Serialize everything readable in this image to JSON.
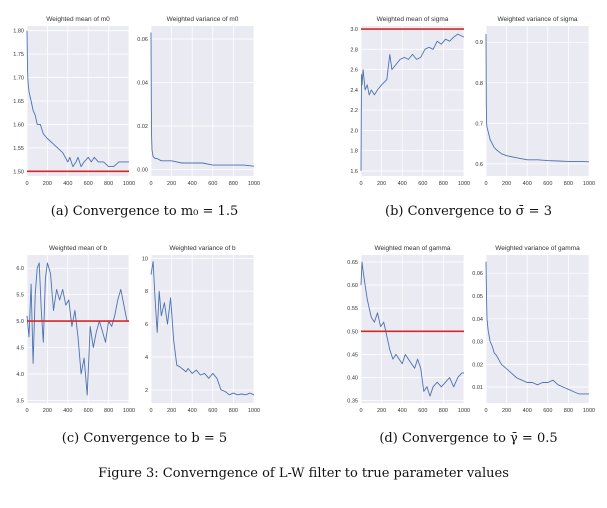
{
  "figure_caption": "Figure 3: Converngence of L-W filter to true parameter values",
  "panels": [
    {
      "caption": "(a) Convergence to m₀ = 1.5"
    },
    {
      "caption": "(b) Convergence to σ̄ = 3"
    },
    {
      "caption": "(c) Convergence to b = 5"
    },
    {
      "caption": "(d) Convergence to γ̄ = 0.5"
    }
  ],
  "colors": {
    "line": "#4c72b0",
    "truth": "#d62728",
    "panel_bg": "#eaeaf2",
    "grid": "#ffffff"
  },
  "chart_data": [
    {
      "type": "line",
      "title": "Weighted mean of m0",
      "xlim": [
        0,
        1000
      ],
      "ylim": [
        1.49,
        1.81
      ],
      "xticks": [
        "0",
        "200",
        "400",
        "600",
        "800",
        "1000"
      ],
      "yticks": [
        1.5,
        1.55,
        1.6,
        1.65,
        1.7,
        1.75,
        1.8
      ],
      "ytick_labels": [
        "1.50",
        "1.55",
        "1.60",
        "1.65",
        "1.70",
        "1.75",
        "1.80"
      ],
      "true_value": 1.5,
      "x": [
        0,
        5,
        10,
        20,
        40,
        60,
        80,
        100,
        130,
        160,
        200,
        250,
        300,
        350,
        400,
        420,
        450,
        480,
        500,
        530,
        560,
        600,
        630,
        660,
        700,
        750,
        800,
        850,
        900,
        950,
        1000
      ],
      "y": [
        1.8,
        1.72,
        1.69,
        1.67,
        1.65,
        1.63,
        1.62,
        1.6,
        1.6,
        1.58,
        1.57,
        1.56,
        1.55,
        1.54,
        1.52,
        1.53,
        1.51,
        1.52,
        1.53,
        1.51,
        1.52,
        1.53,
        1.52,
        1.53,
        1.52,
        1.52,
        1.51,
        1.51,
        1.52,
        1.52,
        1.52
      ],
      "grid": true
    },
    {
      "type": "line",
      "title": "Weighted variance of m0",
      "xlim": [
        0,
        1000
      ],
      "ylim": [
        -0.003,
        0.066
      ],
      "xticks": [
        "0",
        "200",
        "400",
        "600",
        "800",
        "1000"
      ],
      "yticks": [
        0,
        0.02,
        0.04,
        0.06
      ],
      "ytick_labels": [
        "0.00",
        "0.02",
        "0.04",
        "0.06"
      ],
      "x": [
        0,
        3,
        6,
        10,
        20,
        40,
        60,
        100,
        150,
        200,
        300,
        400,
        500,
        600,
        700,
        800,
        900,
        1000
      ],
      "y": [
        0.063,
        0.03,
        0.015,
        0.009,
        0.006,
        0.005,
        0.005,
        0.004,
        0.004,
        0.004,
        0.003,
        0.003,
        0.003,
        0.002,
        0.002,
        0.002,
        0.002,
        0.0015
      ],
      "grid": true
    },
    {
      "type": "line",
      "title": "Weighted mean of sigma",
      "xlim": [
        0,
        1000
      ],
      "ylim": [
        1.55,
        3.03
      ],
      "xticks": [
        "0",
        "200",
        "400",
        "600",
        "800",
        "1000"
      ],
      "yticks": [
        1.6,
        1.8,
        2,
        2.2,
        2.4,
        2.6,
        2.8,
        3
      ],
      "ytick_labels": [
        "1.6",
        "1.8",
        "2.0",
        "2.2",
        "2.4",
        "2.6",
        "2.8",
        "3.0"
      ],
      "true_value": 3.0,
      "x": [
        0,
        5,
        10,
        20,
        40,
        60,
        80,
        100,
        130,
        160,
        200,
        250,
        280,
        300,
        340,
        380,
        420,
        460,
        500,
        540,
        580,
        620,
        660,
        700,
        740,
        780,
        820,
        860,
        900,
        940,
        980,
        1000
      ],
      "y": [
        1.6,
        2.55,
        2.45,
        2.6,
        2.4,
        2.45,
        2.35,
        2.4,
        2.35,
        2.4,
        2.45,
        2.5,
        2.75,
        2.6,
        2.65,
        2.7,
        2.72,
        2.7,
        2.75,
        2.7,
        2.72,
        2.8,
        2.82,
        2.8,
        2.88,
        2.85,
        2.9,
        2.88,
        2.92,
        2.95,
        2.93,
        2.92
      ],
      "grid": true
    },
    {
      "type": "line",
      "title": "Weighted variance of sigma",
      "xlim": [
        0,
        1000
      ],
      "ylim": [
        0.57,
        0.94
      ],
      "xticks": [
        "0",
        "200",
        "400",
        "600",
        "800",
        "1000"
      ],
      "yticks": [
        0.6,
        0.7,
        0.8,
        0.9
      ],
      "ytick_labels": [
        "0.6",
        "0.7",
        "0.8",
        "0.9"
      ],
      "x": [
        0,
        3,
        6,
        10,
        20,
        40,
        60,
        80,
        100,
        150,
        200,
        300,
        400,
        500,
        600,
        700,
        800,
        900,
        1000
      ],
      "y": [
        0.92,
        0.75,
        0.7,
        0.69,
        0.68,
        0.66,
        0.65,
        0.64,
        0.635,
        0.625,
        0.62,
        0.615,
        0.61,
        0.61,
        0.608,
        0.607,
        0.606,
        0.606,
        0.605
      ],
      "grid": true
    },
    {
      "type": "line",
      "title": "Weighted mean of b",
      "xlim": [
        0,
        1000
      ],
      "ylim": [
        3.45,
        6.25
      ],
      "xticks": [
        "0",
        "200",
        "400",
        "600",
        "800",
        "1000"
      ],
      "yticks": [
        3.5,
        4,
        4.5,
        5,
        5.5,
        6
      ],
      "ytick_labels": [
        "3.5",
        "4.0",
        "4.5",
        "5.0",
        "5.5",
        "6.0"
      ],
      "true_value": 5.0,
      "x": [
        0,
        20,
        40,
        60,
        80,
        100,
        120,
        140,
        160,
        180,
        200,
        230,
        260,
        290,
        320,
        350,
        380,
        410,
        440,
        470,
        500,
        530,
        560,
        590,
        620,
        650,
        680,
        710,
        740,
        770,
        800,
        830,
        860,
        890,
        920,
        950,
        980,
        1000
      ],
      "y": [
        5.1,
        4.7,
        5.7,
        4.2,
        5.5,
        6.0,
        6.1,
        5.2,
        4.6,
        5.8,
        6.1,
        5.9,
        5.2,
        5.6,
        5.4,
        5.6,
        5.3,
        5.4,
        4.9,
        5.2,
        4.7,
        4.0,
        4.3,
        3.6,
        4.9,
        4.5,
        4.8,
        5.0,
        4.8,
        4.6,
        5.0,
        4.9,
        5.1,
        5.4,
        5.6,
        5.3,
        5.0,
        5.0
      ],
      "grid": true
    },
    {
      "type": "line",
      "title": "Weighted variance of b",
      "xlim": [
        0,
        1000
      ],
      "ylim": [
        1.2,
        10.2
      ],
      "xticks": [
        "0",
        "200",
        "400",
        "600",
        "800",
        "1000"
      ],
      "yticks": [
        2,
        4,
        6,
        8,
        10
      ],
      "ytick_labels": [
        "2",
        "4",
        "6",
        "8",
        "10"
      ],
      "x": [
        0,
        20,
        40,
        60,
        80,
        100,
        130,
        160,
        190,
        220,
        250,
        280,
        300,
        320,
        340,
        360,
        400,
        440,
        480,
        520,
        560,
        600,
        640,
        680,
        720,
        760,
        800,
        840,
        880,
        920,
        960,
        1000
      ],
      "y": [
        9.0,
        9.8,
        7.5,
        5.5,
        8.0,
        6.5,
        7.3,
        6.0,
        7.6,
        5.0,
        3.5,
        3.4,
        3.3,
        3.2,
        3.1,
        3.3,
        3.0,
        3.2,
        2.9,
        3.0,
        2.7,
        3.0,
        2.7,
        2.0,
        1.9,
        1.7,
        1.8,
        1.7,
        1.75,
        1.7,
        1.8,
        1.7
      ],
      "grid": true
    },
    {
      "type": "line",
      "title": "Weighted mean of gamma",
      "xlim": [
        0,
        1000
      ],
      "ylim": [
        0.345,
        0.665
      ],
      "xticks": [
        "0",
        "200",
        "400",
        "600",
        "800",
        "1000"
      ],
      "yticks": [
        0.35,
        0.4,
        0.45,
        0.5,
        0.55,
        0.6,
        0.65
      ],
      "ytick_labels": [
        "0.35",
        "0.40",
        "0.45",
        "0.50",
        "0.55",
        "0.60",
        "0.65"
      ],
      "true_value": 0.5,
      "x": [
        0,
        10,
        20,
        40,
        60,
        80,
        100,
        130,
        160,
        190,
        220,
        250,
        280,
        310,
        340,
        370,
        400,
        430,
        460,
        490,
        520,
        550,
        580,
        610,
        640,
        670,
        700,
        740,
        780,
        820,
        860,
        900,
        940,
        980,
        1000
      ],
      "y": [
        0.6,
        0.65,
        0.63,
        0.6,
        0.57,
        0.55,
        0.53,
        0.52,
        0.54,
        0.51,
        0.52,
        0.49,
        0.46,
        0.44,
        0.45,
        0.44,
        0.43,
        0.45,
        0.44,
        0.43,
        0.42,
        0.44,
        0.42,
        0.37,
        0.38,
        0.36,
        0.38,
        0.39,
        0.38,
        0.39,
        0.4,
        0.38,
        0.4,
        0.41,
        0.41
      ],
      "grid": true
    },
    {
      "type": "line",
      "title": "Weighted variance of gamma",
      "xlim": [
        0,
        1000
      ],
      "ylim": [
        0.003,
        0.068
      ],
      "xticks": [
        "0",
        "200",
        "400",
        "600",
        "800",
        "1000"
      ],
      "yticks": [
        0.01,
        0.02,
        0.03,
        0.04,
        0.05,
        0.06
      ],
      "ytick_labels": [
        "0.01",
        "0.02",
        "0.03",
        "0.04",
        "0.05",
        "0.06"
      ],
      "x": [
        0,
        5,
        10,
        20,
        40,
        60,
        80,
        100,
        150,
        200,
        250,
        300,
        350,
        400,
        450,
        500,
        550,
        600,
        650,
        700,
        750,
        800,
        850,
        900,
        950,
        1000
      ],
      "y": [
        0.065,
        0.05,
        0.04,
        0.035,
        0.03,
        0.028,
        0.025,
        0.024,
        0.02,
        0.018,
        0.016,
        0.014,
        0.013,
        0.012,
        0.012,
        0.011,
        0.012,
        0.012,
        0.013,
        0.011,
        0.01,
        0.009,
        0.008,
        0.007,
        0.007,
        0.007
      ],
      "grid": true
    }
  ]
}
